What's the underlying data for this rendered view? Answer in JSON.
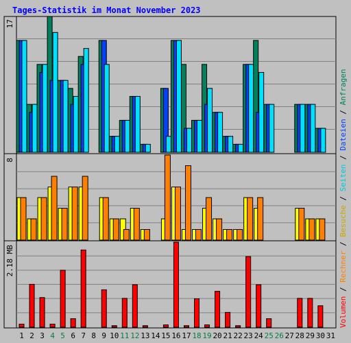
{
  "chart_data": {
    "type": "bar",
    "title": "Tages-Statistik im Monat November 2023",
    "categories": [
      "1",
      "2",
      "3",
      "4",
      "5",
      "6",
      "7",
      "8",
      "9",
      "10",
      "11",
      "12",
      "13",
      "14",
      "15",
      "16",
      "17",
      "18",
      "19",
      "20",
      "21",
      "22",
      "23",
      "24",
      "25",
      "26",
      "27",
      "28",
      "29",
      "30",
      "31"
    ],
    "weekend_days": [
      "4",
      "5",
      "11",
      "12",
      "18",
      "19",
      "25",
      "26"
    ],
    "panels": [
      {
        "name": "requests",
        "y_max_label": "17",
        "ylim": [
          0,
          17
        ],
        "series": [
          {
            "name": "Anfragen",
            "color": "#00805c",
            "values": [
              14,
              6,
              11,
              17,
              9,
              8,
              12,
              0,
              14,
              2,
              4,
              7,
              1,
              0,
              8,
              14,
              11,
              4,
              11,
              5,
              2,
              1,
              11,
              14,
              6,
              0,
              0,
              6,
              6,
              3,
              0
            ]
          },
          {
            "name": "Dateien",
            "color": "#0042ff",
            "values": [
              14,
              5,
              10,
              9,
              9,
              6,
              11,
              0,
              14,
              2,
              4,
              7,
              1,
              0,
              8,
              14,
              3,
              4,
              6,
              5,
              2,
              1,
              11,
              5,
              6,
              0,
              0,
              6,
              6,
              3,
              0
            ]
          },
          {
            "name": "Seiten",
            "color": "#00e0ff",
            "values": [
              14,
              6,
              11,
              15,
              9,
              7,
              13,
              0,
              11,
              2,
              4,
              7,
              1,
              0,
              2,
              14,
              3,
              4,
              8,
              5,
              2,
              1,
              11,
              10,
              6,
              0,
              0,
              6,
              6,
              3,
              0
            ]
          }
        ]
      },
      {
        "name": "visits",
        "y_max_label": "8",
        "ylim": [
          0,
          8
        ],
        "series": [
          {
            "name": "Besuche",
            "color": "#ffff00",
            "values": [
              4,
              2,
              4,
              5,
              3,
              5,
              5,
              0,
              4,
              2,
              2,
              3,
              1,
              0,
              2,
              5,
              1,
              1,
              3,
              2,
              1,
              1,
              4,
              3,
              0,
              0,
              0,
              3,
              2,
              2,
              0
            ]
          },
          {
            "name": "Rechner",
            "color": "#ff8000",
            "values": [
              4,
              2,
              4,
              6,
              3,
              5,
              6,
              0,
              4,
              2,
              1,
              3,
              1,
              0,
              8,
              5,
              7,
              1,
              4,
              2,
              1,
              1,
              4,
              4,
              0,
              0,
              0,
              3,
              2,
              2,
              0
            ]
          }
        ]
      },
      {
        "name": "volume",
        "y_max_label": "2.18 MB",
        "ylim": [
          0,
          2.18
        ],
        "series": [
          {
            "name": "Volumen",
            "color": "#ff0000",
            "values": [
              0.08,
              1.1,
              0.76,
              0.08,
              1.46,
              0.22,
              1.98,
              0,
              0.96,
              0.04,
              0.74,
              1.09,
              0.04,
              0,
              0.06,
              2.18,
              0.04,
              0.73,
              0.06,
              0.92,
              0.38,
              0.04,
              1.81,
              1.09,
              0.22,
              0,
              0,
              0.74,
              0.74,
              0.55,
              0
            ]
          }
        ]
      }
    ],
    "legend_right": [
      "Volumen",
      "Rechner",
      "Besuche",
      "Seiten",
      "Dateien",
      "Anfragen"
    ],
    "legend_separator": " / ",
    "legend_colors": {
      "Volumen": "#ff0000",
      "Rechner": "#ff8000",
      "Besuche": "#c8a800",
      "Seiten": "#00c8e0",
      "Dateien": "#0042ff",
      "Anfragen": "#00805c"
    },
    "grid": true
  },
  "colors": {
    "background": "#c0c0c0",
    "title": "#0000ff",
    "axis_label": "#000000",
    "weekend_label": "#008040",
    "grid": "#808080"
  }
}
